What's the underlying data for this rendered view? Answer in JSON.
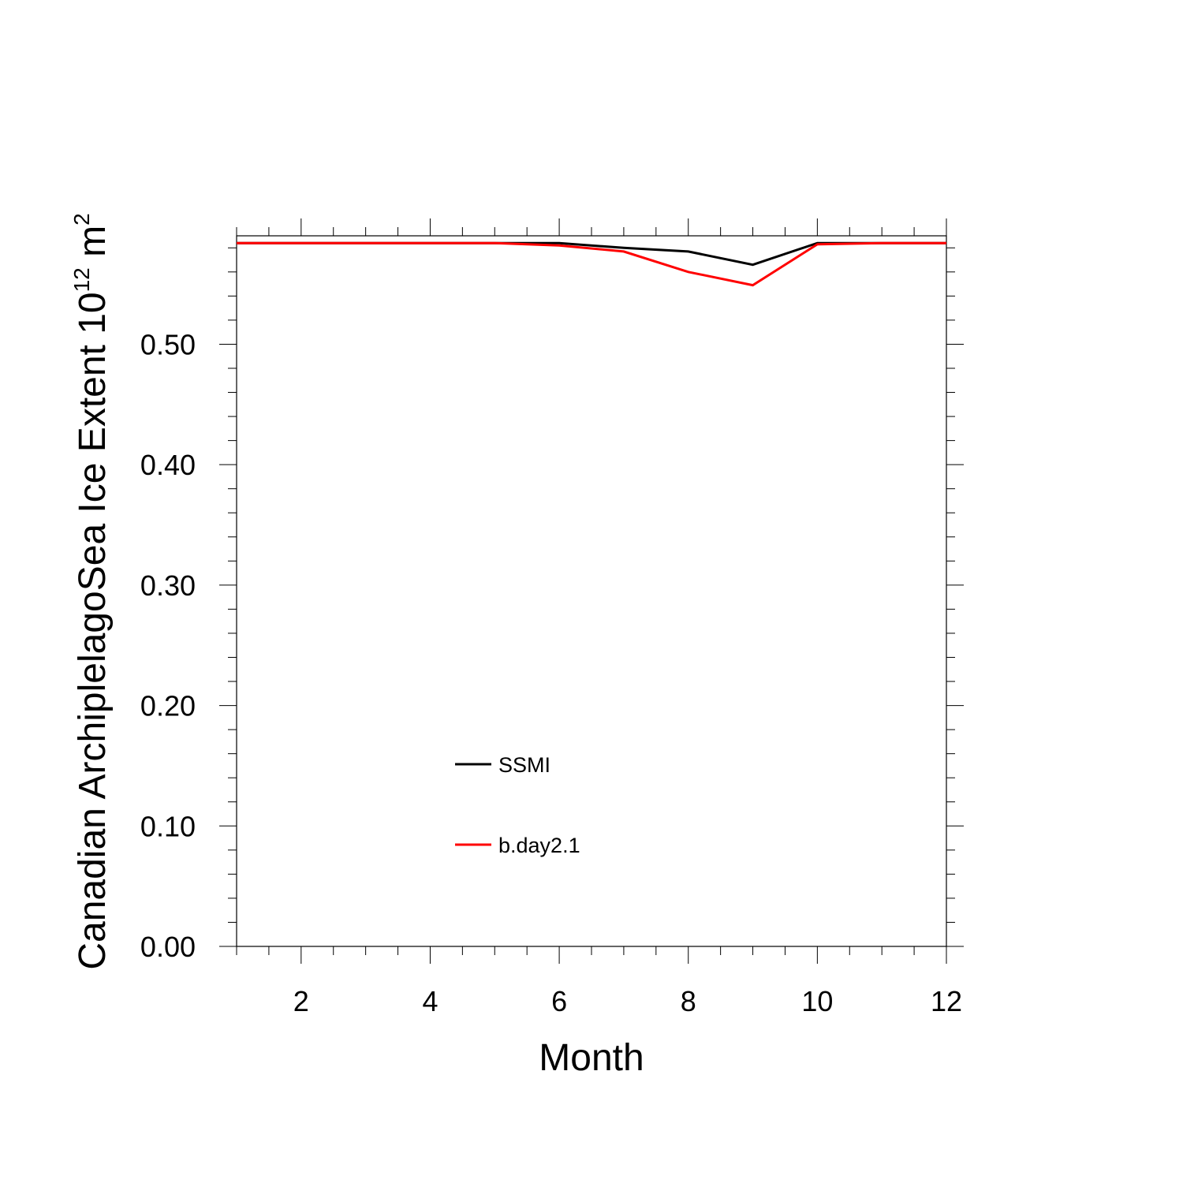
{
  "chart_data": {
    "type": "line",
    "xlabel": "Month",
    "ylabel_text": "Canadian ArchiplelagoSea Ice Extent 10",
    "ylabel_sup1": "12",
    "ylabel_unit": " m",
    "ylabel_sup2": "2",
    "xlim": [
      1,
      12
    ],
    "ylim": [
      0,
      0.59
    ],
    "x_ticks": [
      2,
      4,
      6,
      8,
      10,
      12
    ],
    "x_tick_labels": [
      "2",
      "4",
      "6",
      "8",
      "10",
      "12"
    ],
    "y_ticks": [
      0,
      0.1,
      0.2,
      0.3,
      0.4,
      0.5
    ],
    "y_tick_labels": [
      "0.00",
      "0.10",
      "0.20",
      "0.30",
      "0.40",
      "0.50"
    ],
    "x": [
      1,
      2,
      3,
      4,
      5,
      6,
      7,
      8,
      9,
      10,
      11,
      12
    ],
    "series": [
      {
        "name": "SSMI",
        "color": "#000000",
        "values": [
          0.584,
          0.584,
          0.584,
          0.584,
          0.584,
          0.584,
          0.58,
          0.577,
          0.566,
          0.584,
          0.584,
          0.584
        ]
      },
      {
        "name": "b.day2.1",
        "color": "#ff0000",
        "values": [
          0.584,
          0.584,
          0.584,
          0.584,
          0.584,
          0.582,
          0.577,
          0.56,
          0.549,
          0.583,
          0.584,
          0.584
        ]
      }
    ],
    "legend_position": "lower-center-left",
    "grid": false
  }
}
